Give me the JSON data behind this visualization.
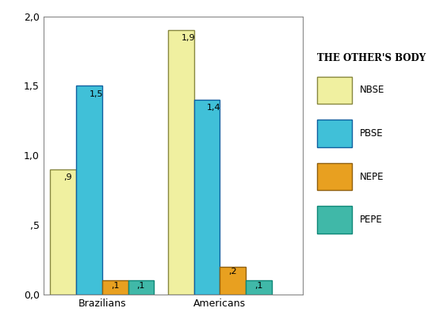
{
  "categories": [
    "Brazilians",
    "Americans"
  ],
  "series": {
    "NBSE": [
      0.9,
      1.9
    ],
    "PBSE": [
      1.5,
      1.4
    ],
    "NEPE": [
      0.1,
      0.2
    ],
    "PEPE": [
      0.1,
      0.1
    ]
  },
  "bar_colors": {
    "NBSE": "#f0f0a0",
    "PBSE": "#40c0d8",
    "NEPE": "#e8a020",
    "PEPE": "#40b8a8"
  },
  "bar_edge_colors": {
    "NBSE": "#888840",
    "PBSE": "#1060a0",
    "NEPE": "#906010",
    "PEPE": "#108878"
  },
  "labels": {
    "NBSE": [
      ",9",
      "1,9"
    ],
    "PBSE": [
      "1,5",
      "1,4"
    ],
    "NEPE": [
      ",1",
      ",2"
    ],
    "PEPE": [
      ",1",
      ",1"
    ]
  },
  "legend_title": "THE OTHER'S BODY",
  "ylim": [
    0.0,
    2.0
  ],
  "yticks": [
    0.0,
    0.5,
    1.0,
    1.5,
    2.0
  ],
  "ytick_labels": [
    "0,0",
    ",5",
    "1,0",
    "1,5",
    "2,0"
  ],
  "bar_width": 0.22,
  "background_color": "#ffffff"
}
